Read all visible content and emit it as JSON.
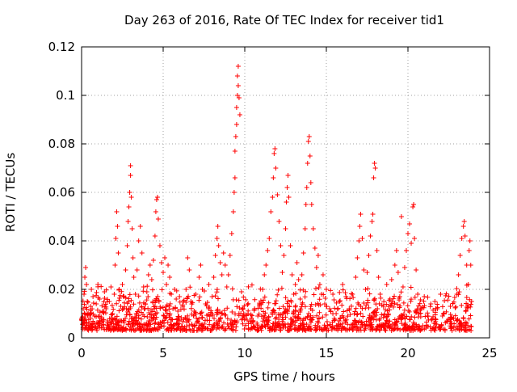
{
  "chart_data": {
    "type": "scatter",
    "title": "Day 263 of 2016, Rate Of TEC Index for receiver tid1",
    "xlabel": "GPS time / hours",
    "ylabel": "ROTI / TECUs",
    "xlim": [
      0,
      25
    ],
    "ylim": [
      0,
      0.12
    ],
    "xticks": [
      0,
      5,
      10,
      15,
      20,
      25
    ],
    "yticks": [
      0,
      0.02,
      0.04,
      0.06,
      0.08,
      0.1,
      0.12
    ],
    "xtick_labels": [
      "0",
      "5",
      "10",
      "15",
      "20",
      "25"
    ],
    "ytick_labels": [
      "0",
      "0.02",
      "0.04",
      "0.06",
      "0.08",
      "0.1",
      "0.12"
    ],
    "grid": true,
    "marker": "+",
    "color": "#ff0000",
    "series": [
      {
        "name": "tid1",
        "points": [
          [
            0.0,
            0.008
          ],
          [
            0.1,
            0.012
          ],
          [
            0.15,
            0.018
          ],
          [
            0.2,
            0.025
          ],
          [
            0.25,
            0.029
          ],
          [
            0.3,
            0.022
          ],
          [
            0.35,
            0.015
          ],
          [
            0.4,
            0.01
          ],
          [
            0.5,
            0.006
          ],
          [
            0.55,
            0.013
          ],
          [
            0.6,
            0.02
          ],
          [
            0.7,
            0.017
          ],
          [
            0.8,
            0.009
          ],
          [
            0.9,
            0.014
          ],
          [
            1.0,
            0.022
          ],
          [
            1.1,
            0.016
          ],
          [
            1.2,
            0.008
          ],
          [
            1.3,
            0.011
          ],
          [
            1.4,
            0.019
          ],
          [
            1.5,
            0.012
          ],
          [
            1.6,
            0.007
          ],
          [
            1.7,
            0.015
          ],
          [
            1.8,
            0.021
          ],
          [
            1.9,
            0.01
          ],
          [
            2.0,
            0.018
          ],
          [
            2.05,
            0.03
          ],
          [
            2.1,
            0.041
          ],
          [
            2.15,
            0.052
          ],
          [
            2.2,
            0.046
          ],
          [
            2.25,
            0.035
          ],
          [
            2.3,
            0.02
          ],
          [
            2.4,
            0.013
          ],
          [
            2.5,
            0.022
          ],
          [
            2.6,
            0.017
          ],
          [
            2.7,
            0.028
          ],
          [
            2.8,
            0.038
          ],
          [
            2.85,
            0.048
          ],
          [
            2.9,
            0.054
          ],
          [
            2.95,
            0.06
          ],
          [
            3.0,
            0.071
          ],
          [
            3.0,
            0.067
          ],
          [
            3.05,
            0.058
          ],
          [
            3.1,
            0.045
          ],
          [
            3.15,
            0.033
          ],
          [
            3.2,
            0.025
          ],
          [
            3.3,
            0.018
          ],
          [
            3.4,
            0.028
          ],
          [
            3.5,
            0.04
          ],
          [
            3.6,
            0.046
          ],
          [
            3.7,
            0.035
          ],
          [
            3.8,
            0.021
          ],
          [
            3.9,
            0.014
          ],
          [
            4.0,
            0.019
          ],
          [
            4.1,
            0.026
          ],
          [
            4.2,
            0.03
          ],
          [
            4.3,
            0.024
          ],
          [
            4.4,
            0.032
          ],
          [
            4.5,
            0.042
          ],
          [
            4.55,
            0.052
          ],
          [
            4.6,
            0.057
          ],
          [
            4.65,
            0.058
          ],
          [
            4.7,
            0.049
          ],
          [
            4.8,
            0.038
          ],
          [
            4.9,
            0.031
          ],
          [
            5.0,
            0.027
          ],
          [
            5.1,
            0.033
          ],
          [
            5.2,
            0.022
          ],
          [
            5.3,
            0.03
          ],
          [
            5.4,
            0.025
          ],
          [
            5.5,
            0.018
          ],
          [
            5.6,
            0.012
          ],
          [
            5.7,
            0.02
          ],
          [
            5.8,
            0.016
          ],
          [
            5.9,
            0.011
          ],
          [
            6.0,
            0.017
          ],
          [
            6.2,
            0.013
          ],
          [
            6.4,
            0.02
          ],
          [
            6.5,
            0.033
          ],
          [
            6.6,
            0.028
          ],
          [
            6.7,
            0.015
          ],
          [
            6.9,
            0.011
          ],
          [
            7.0,
            0.018
          ],
          [
            7.2,
            0.025
          ],
          [
            7.3,
            0.03
          ],
          [
            7.4,
            0.02
          ],
          [
            7.6,
            0.014
          ],
          [
            7.8,
            0.022
          ],
          [
            8.0,
            0.017
          ],
          [
            8.1,
            0.025
          ],
          [
            8.2,
            0.034
          ],
          [
            8.3,
            0.041
          ],
          [
            8.35,
            0.046
          ],
          [
            8.4,
            0.038
          ],
          [
            8.5,
            0.031
          ],
          [
            8.6,
            0.026
          ],
          [
            8.7,
            0.035
          ],
          [
            8.8,
            0.03
          ],
          [
            8.9,
            0.021
          ],
          [
            9.0,
            0.026
          ],
          [
            9.1,
            0.034
          ],
          [
            9.2,
            0.043
          ],
          [
            9.3,
            0.052
          ],
          [
            9.35,
            0.06
          ],
          [
            9.4,
            0.066
          ],
          [
            9.4,
            0.077
          ],
          [
            9.45,
            0.083
          ],
          [
            9.5,
            0.088
          ],
          [
            9.5,
            0.095
          ],
          [
            9.55,
            0.1
          ],
          [
            9.55,
            0.108
          ],
          [
            9.6,
            0.112
          ],
          [
            9.6,
            0.104
          ],
          [
            9.65,
            0.099
          ],
          [
            9.7,
            0.092
          ],
          [
            9.8,
            0.019
          ],
          [
            9.9,
            0.012
          ],
          [
            10.0,
            0.008
          ],
          [
            10.2,
            0.01
          ],
          [
            10.4,
            0.006
          ],
          [
            10.6,
            0.012
          ],
          [
            10.8,
            0.009
          ],
          [
            11.0,
            0.014
          ],
          [
            11.1,
            0.02
          ],
          [
            11.2,
            0.026
          ],
          [
            11.3,
            0.03
          ],
          [
            11.4,
            0.036
          ],
          [
            11.5,
            0.041
          ],
          [
            11.6,
            0.052
          ],
          [
            11.7,
            0.058
          ],
          [
            11.75,
            0.066
          ],
          [
            11.8,
            0.076
          ],
          [
            11.85,
            0.078
          ],
          [
            11.9,
            0.07
          ],
          [
            12.0,
            0.059
          ],
          [
            12.1,
            0.048
          ],
          [
            12.2,
            0.038
          ],
          [
            12.3,
            0.027
          ],
          [
            12.4,
            0.034
          ],
          [
            12.5,
            0.045
          ],
          [
            12.55,
            0.056
          ],
          [
            12.6,
            0.062
          ],
          [
            12.65,
            0.067
          ],
          [
            12.7,
            0.058
          ],
          [
            12.8,
            0.038
          ],
          [
            12.9,
            0.026
          ],
          [
            13.0,
            0.018
          ],
          [
            13.1,
            0.022
          ],
          [
            13.2,
            0.031
          ],
          [
            13.3,
            0.024
          ],
          [
            13.4,
            0.016
          ],
          [
            13.5,
            0.026
          ],
          [
            13.6,
            0.035
          ],
          [
            13.7,
            0.045
          ],
          [
            13.75,
            0.055
          ],
          [
            13.8,
            0.062
          ],
          [
            13.85,
            0.072
          ],
          [
            13.9,
            0.081
          ],
          [
            13.95,
            0.083
          ],
          [
            14.0,
            0.075
          ],
          [
            14.05,
            0.064
          ],
          [
            14.1,
            0.055
          ],
          [
            14.2,
            0.045
          ],
          [
            14.3,
            0.037
          ],
          [
            14.4,
            0.029
          ],
          [
            14.5,
            0.034
          ],
          [
            14.6,
            0.022
          ],
          [
            14.7,
            0.018
          ],
          [
            14.8,
            0.026
          ],
          [
            14.9,
            0.014
          ],
          [
            15.0,
            0.02
          ],
          [
            15.2,
            0.012
          ],
          [
            15.4,
            0.018
          ],
          [
            15.6,
            0.01
          ],
          [
            15.8,
            0.015
          ],
          [
            16.0,
            0.022
          ],
          [
            16.2,
            0.017
          ],
          [
            16.4,
            0.012
          ],
          [
            16.6,
            0.018
          ],
          [
            16.8,
            0.025
          ],
          [
            16.9,
            0.033
          ],
          [
            17.0,
            0.04
          ],
          [
            17.05,
            0.046
          ],
          [
            17.1,
            0.051
          ],
          [
            17.2,
            0.041
          ],
          [
            17.3,
            0.028
          ],
          [
            17.4,
            0.02
          ],
          [
            17.5,
            0.027
          ],
          [
            17.6,
            0.034
          ],
          [
            17.7,
            0.042
          ],
          [
            17.8,
            0.048
          ],
          [
            17.85,
            0.051
          ],
          [
            17.9,
            0.066
          ],
          [
            17.95,
            0.072
          ],
          [
            18.0,
            0.07
          ],
          [
            18.1,
            0.036
          ],
          [
            18.2,
            0.025
          ],
          [
            18.3,
            0.018
          ],
          [
            18.5,
            0.013
          ],
          [
            18.7,
            0.022
          ],
          [
            18.9,
            0.016
          ],
          [
            19.0,
            0.024
          ],
          [
            19.2,
            0.03
          ],
          [
            19.3,
            0.036
          ],
          [
            19.4,
            0.027
          ],
          [
            19.5,
            0.017
          ],
          [
            19.6,
            0.05
          ],
          [
            19.7,
            0.021
          ],
          [
            19.8,
            0.029
          ],
          [
            19.9,
            0.036
          ],
          [
            20.0,
            0.043
          ],
          [
            20.1,
            0.047
          ],
          [
            20.2,
            0.039
          ],
          [
            20.3,
            0.054
          ],
          [
            20.35,
            0.055
          ],
          [
            20.4,
            0.041
          ],
          [
            20.5,
            0.028
          ],
          [
            20.6,
            0.018
          ],
          [
            20.8,
            0.012
          ],
          [
            21.0,
            0.017
          ],
          [
            21.2,
            0.009
          ],
          [
            21.4,
            0.014
          ],
          [
            21.6,
            0.006
          ],
          [
            21.8,
            0.012
          ],
          [
            22.0,
            0.018
          ],
          [
            22.2,
            0.01
          ],
          [
            22.4,
            0.007
          ],
          [
            22.6,
            0.013
          ],
          [
            22.8,
            0.008
          ],
          [
            23.0,
            0.018
          ],
          [
            23.1,
            0.026
          ],
          [
            23.2,
            0.034
          ],
          [
            23.3,
            0.041
          ],
          [
            23.4,
            0.046
          ],
          [
            23.45,
            0.048
          ],
          [
            23.5,
            0.042
          ],
          [
            23.6,
            0.03
          ],
          [
            23.7,
            0.022
          ],
          [
            23.75,
            0.036
          ],
          [
            23.8,
            0.04
          ],
          [
            23.85,
            0.03
          ],
          [
            23.9,
            0.015
          ]
        ]
      }
    ]
  }
}
